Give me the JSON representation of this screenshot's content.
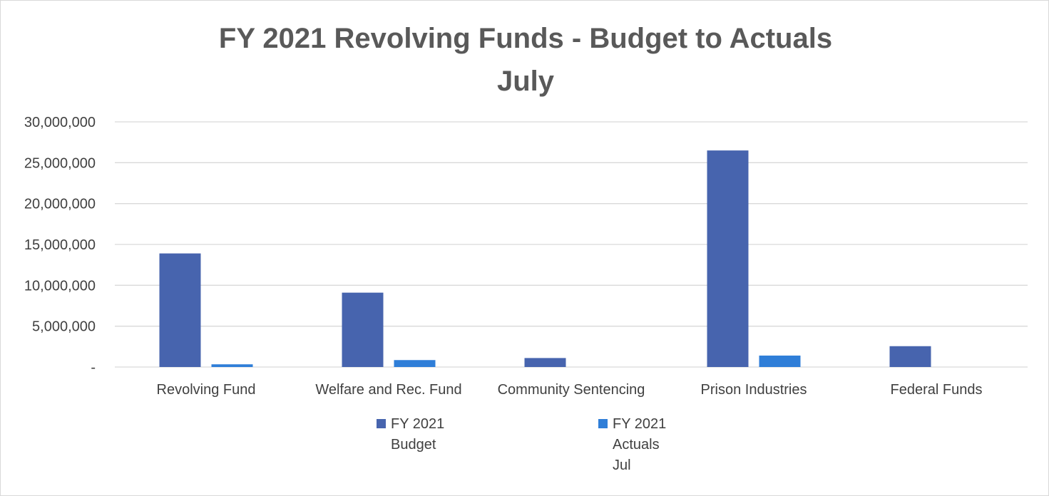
{
  "chart_data": {
    "type": "bar",
    "title": "FY 2021 Revolving Funds - Budget to Actuals",
    "subtitle": "July",
    "categories": [
      "Revolving Fund",
      "Welfare and Rec. Fund",
      "Community Sentencing",
      "Prison Industries",
      "Federal Funds"
    ],
    "series": [
      {
        "name": "FY 2021 Budget",
        "name_lines": [
          "FY 2021",
          "Budget"
        ],
        "color": "#4764ae",
        "values": [
          13900000,
          9100000,
          1100000,
          26500000,
          2550000
        ]
      },
      {
        "name": "FY 2021 Actuals Jul",
        "name_lines": [
          "FY 2021",
          "Actuals",
          "Jul"
        ],
        "color": "#2f7ed8",
        "values": [
          330000,
          850000,
          0,
          1400000,
          0
        ]
      }
    ],
    "ylim": [
      0,
      30000000
    ],
    "yticks": [
      0,
      5000000,
      10000000,
      15000000,
      20000000,
      25000000,
      30000000
    ],
    "ytick_labels": [
      "-",
      "5,000,000",
      "10,000,000",
      "15,000,000",
      "20,000,000",
      "25,000,000",
      "30,000,000"
    ],
    "xlabel": "",
    "ylabel": "",
    "grid": true,
    "legend_position": "bottom"
  }
}
